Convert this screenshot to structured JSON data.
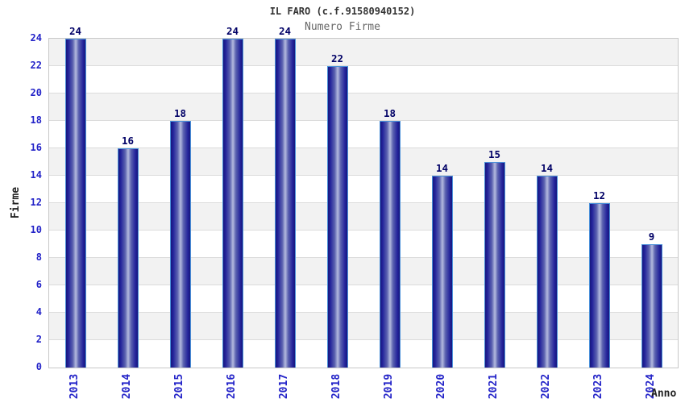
{
  "chart_data": {
    "type": "bar",
    "title": "IL FARO (c.f.91580940152)",
    "subtitle": "Numero Firme",
    "xlabel": "Anno",
    "ylabel": "Firme",
    "categories": [
      "2013",
      "2014",
      "2015",
      "2016",
      "2017",
      "2018",
      "2019",
      "2020",
      "2021",
      "2022",
      "2023",
      "2024"
    ],
    "values": [
      24,
      16,
      18,
      24,
      24,
      22,
      18,
      14,
      15,
      14,
      12,
      9
    ],
    "ylim": [
      0,
      24
    ],
    "ytick_step": 2,
    "legend": "none",
    "grid": "horizontal-bands",
    "colors": {
      "bar_dark": "#17177d",
      "bar_mid": "#23239b",
      "bar_light": "#b4badf",
      "bar_border": "#4a90d9",
      "tick_label": "#2323c8",
      "value_label": "#000066",
      "band_white": "#ffffff",
      "band_gray": "#f2f2f2",
      "gridline": "#dcdcdc"
    }
  }
}
